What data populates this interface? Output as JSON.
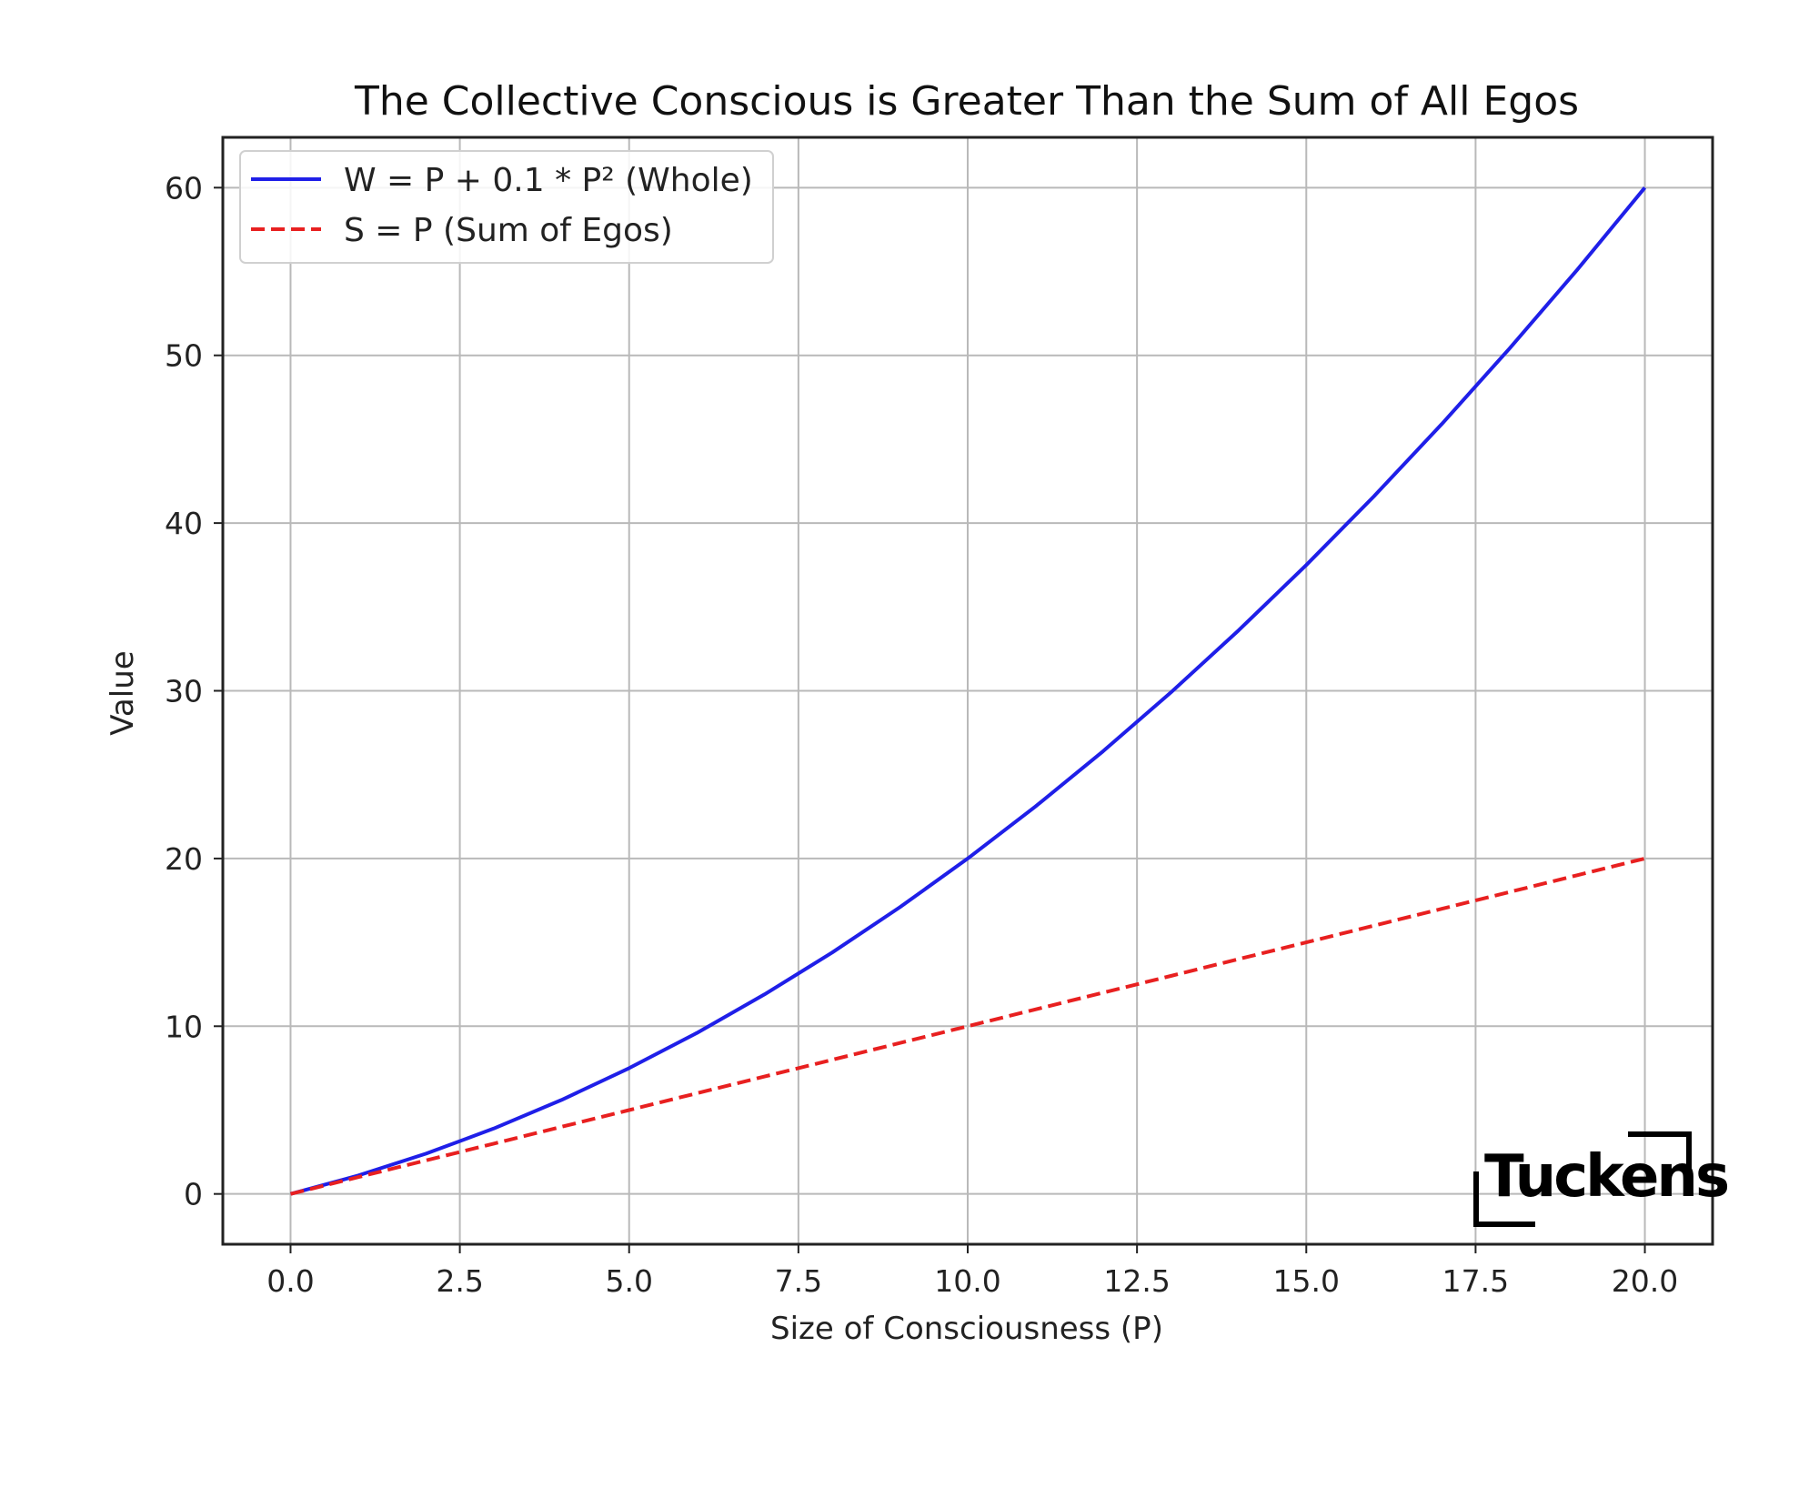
{
  "chart_data": {
    "type": "line",
    "title": "The Collective Conscious is Greater Than the Sum of All Egos",
    "xlabel": "Size of Consciousness (P)",
    "ylabel": "Value",
    "xlim": [
      -1,
      21
    ],
    "ylim": [
      -3,
      63
    ],
    "xticks": [
      0,
      2.5,
      5,
      7.5,
      10,
      12.5,
      15,
      17.5,
      20
    ],
    "xtick_labels": [
      "0.0",
      "2.5",
      "5.0",
      "7.5",
      "10.0",
      "12.5",
      "15.0",
      "17.5",
      "20.0"
    ],
    "yticks": [
      0,
      10,
      20,
      30,
      40,
      50,
      60
    ],
    "ytick_labels": [
      "0",
      "10",
      "20",
      "30",
      "40",
      "50",
      "60"
    ],
    "grid": true,
    "legend_position": "top-left",
    "x": [
      0,
      1,
      2,
      3,
      4,
      5,
      6,
      7,
      8,
      9,
      10,
      11,
      12,
      13,
      14,
      15,
      16,
      17,
      18,
      19,
      20
    ],
    "series": [
      {
        "name": "W = P + 0.1 * P² (Whole)",
        "color": "#1f1fe8",
        "style": "solid",
        "values": [
          0,
          1.1,
          2.4,
          3.9,
          5.6,
          7.5,
          9.6,
          11.9,
          14.4,
          17.1,
          20,
          23.1,
          26.4,
          29.9,
          33.6,
          37.5,
          41.6,
          45.9,
          50.4,
          55.1,
          60
        ]
      },
      {
        "name": "S = P (Sum of Egos)",
        "color": "#e82020",
        "style": "dashed",
        "values": [
          0,
          1,
          2,
          3,
          4,
          5,
          6,
          7,
          8,
          9,
          10,
          11,
          12,
          13,
          14,
          15,
          16,
          17,
          18,
          19,
          20
        ]
      }
    ]
  },
  "watermark": {
    "text": "Tuckens"
  }
}
